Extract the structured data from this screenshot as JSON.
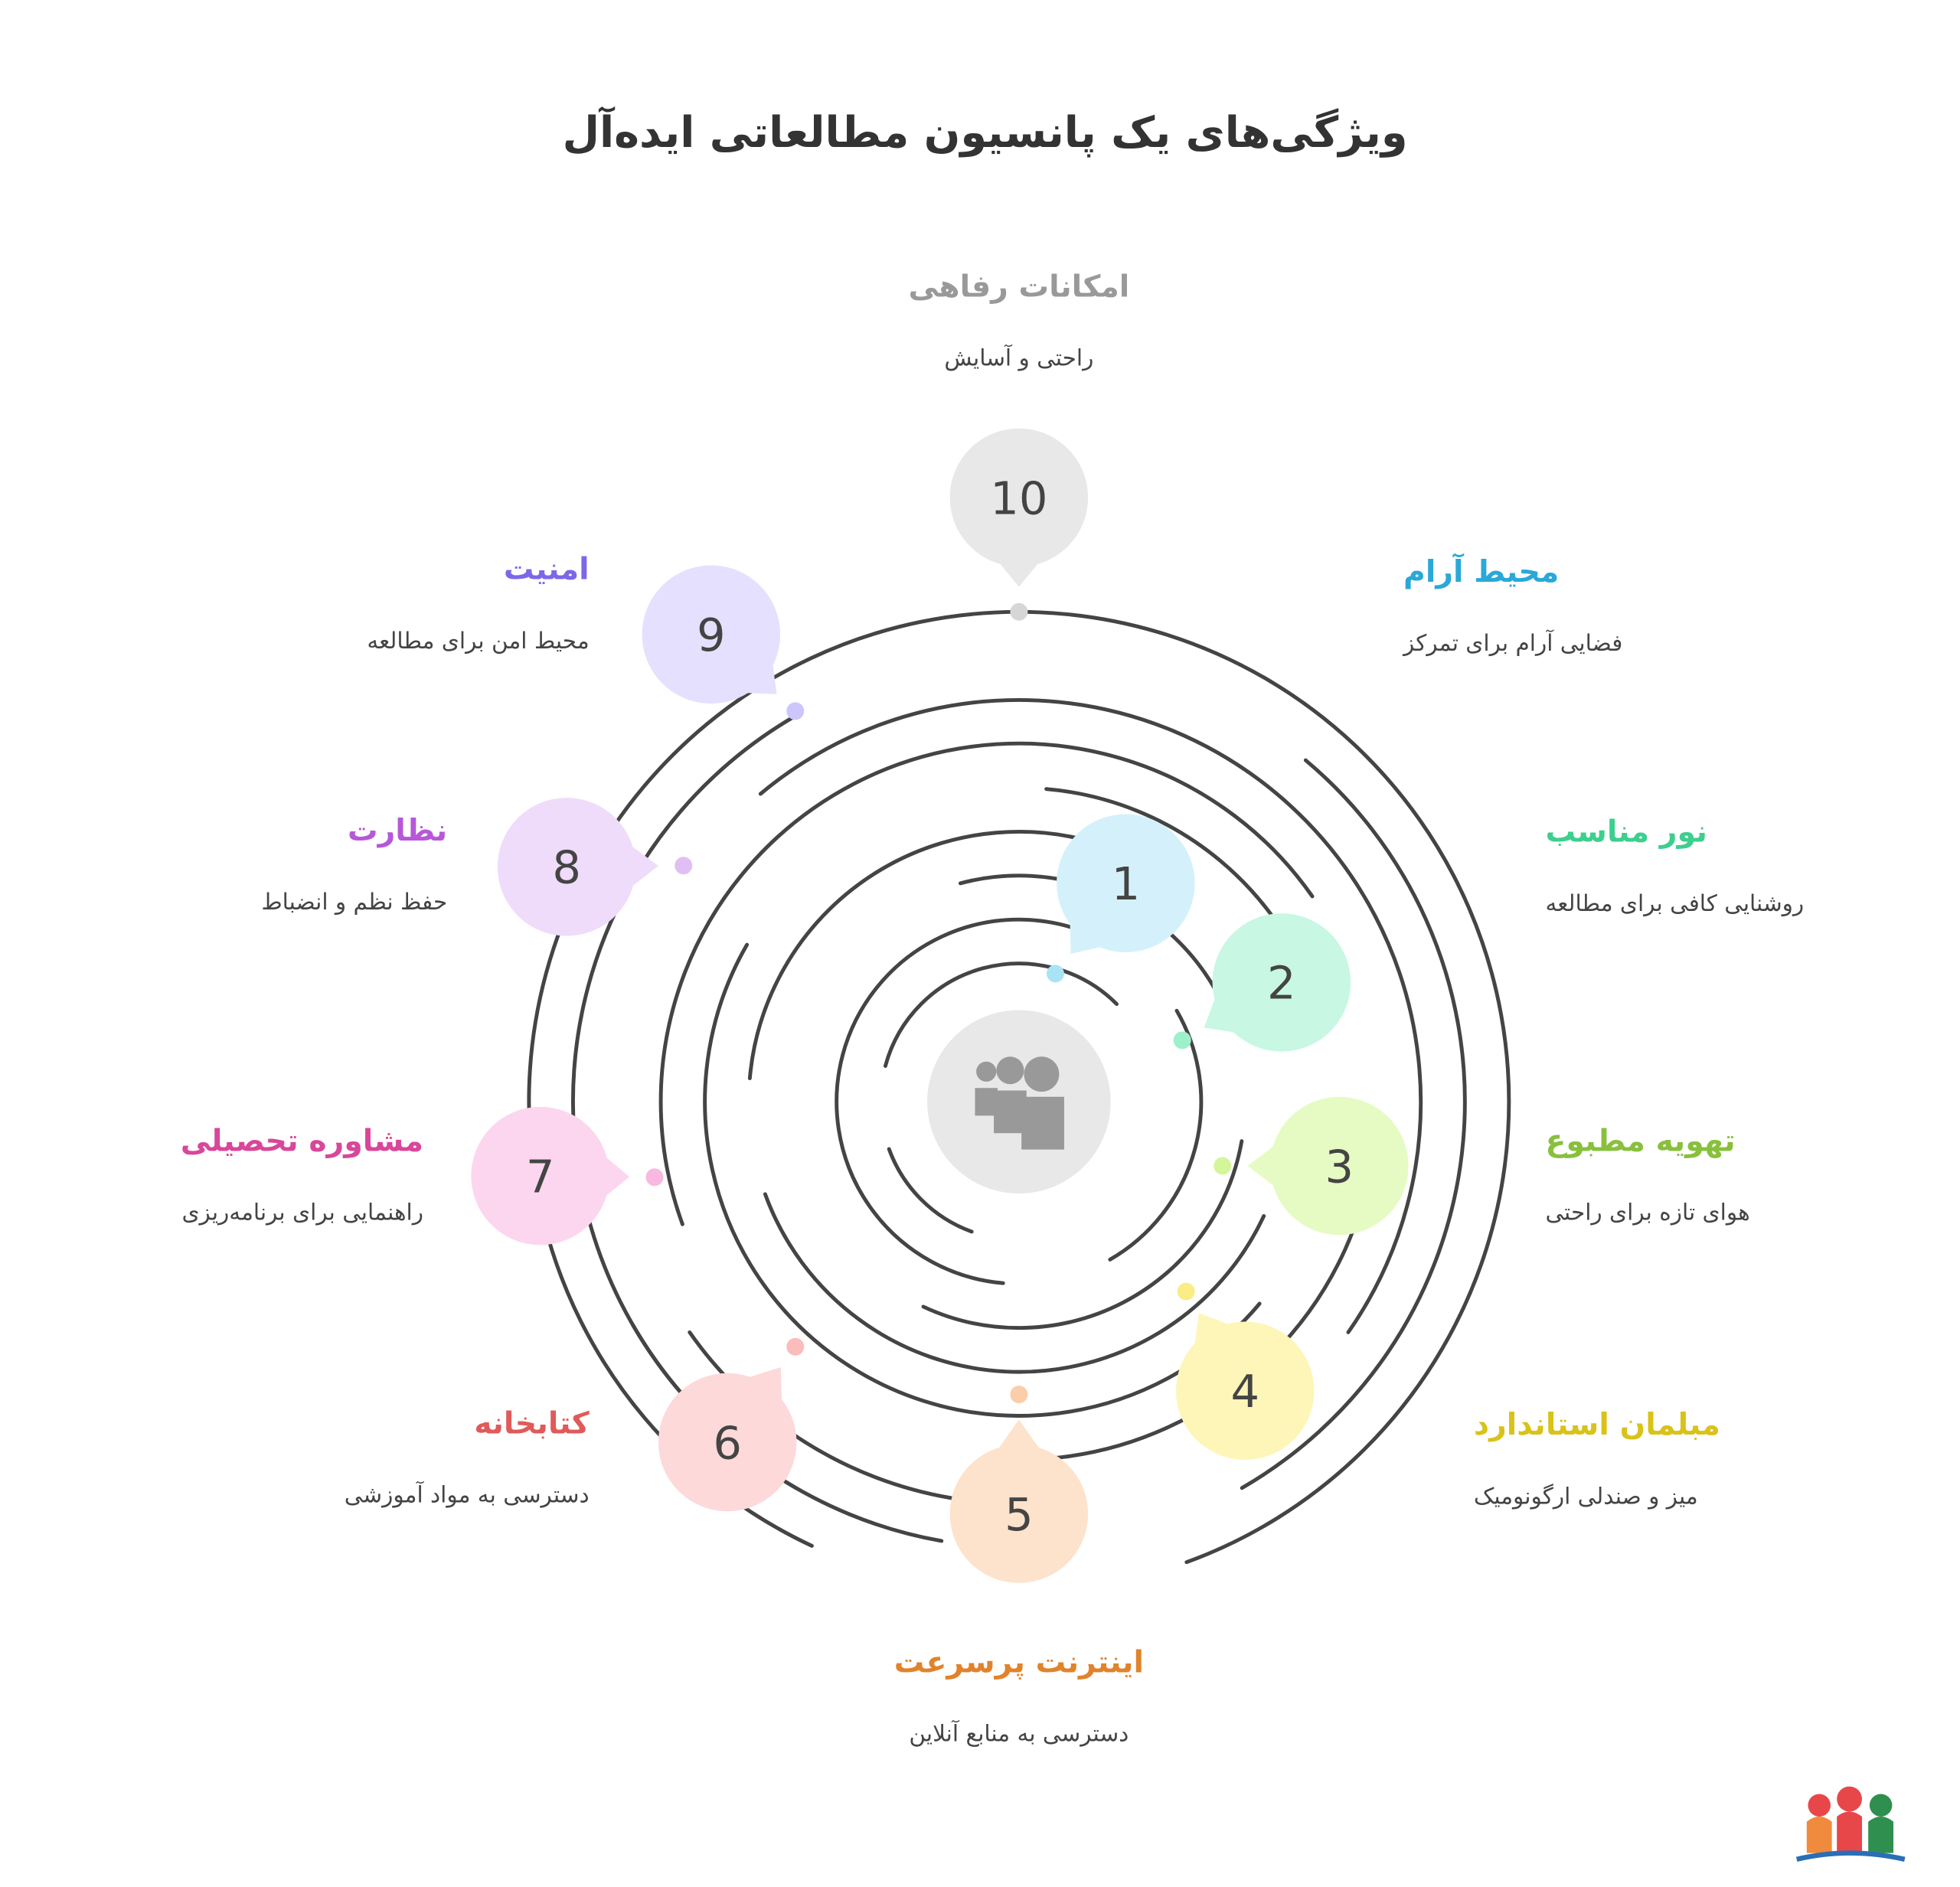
{
  "title": "ویژگی‌های یک پانسیون مطالعاتی ایده‌آل",
  "nodes": [
    {
      "number": "1",
      "title": "محیط آرام",
      "description": "فضایی آرام برای تمرکز"
    },
    {
      "number": "2",
      "title": "نور مناسب",
      "description": "روشنایی کافی برای مطالعه"
    },
    {
      "number": "3",
      "title": "تهویه مطبوع",
      "description": "هوای تازه برای راحتی"
    },
    {
      "number": "4",
      "title": "مبلمان استاندارد",
      "description": "میز و صندلی ارگونومیک"
    },
    {
      "number": "5",
      "title": "اینترنت پرسرعت",
      "description": "دسترسی به منابع آنلاین"
    },
    {
      "number": "6",
      "title": "کتابخانه",
      "description": "دسترسی به مواد آموزشی"
    },
    {
      "number": "7",
      "title": "مشاوره تحصیلی",
      "description": "راهنمایی برای برنامه‌ریزی"
    },
    {
      "number": "8",
      "title": "نظارت",
      "description": "حفظ نظم و انضباط"
    },
    {
      "number": "9",
      "title": "امنیت",
      "description": "محیط امن برای مطالعه"
    },
    {
      "number": "10",
      "title": "امکانات رفاهی",
      "description": "راحتی و آسایش"
    }
  ]
}
